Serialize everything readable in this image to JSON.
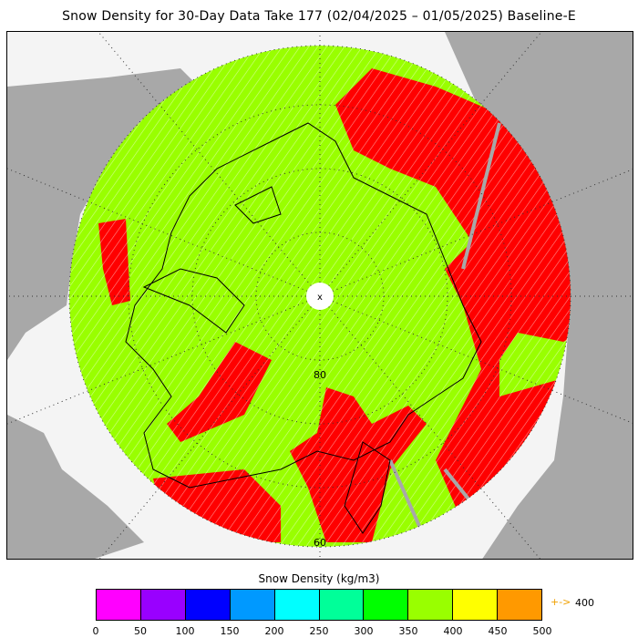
{
  "title": "Snow Density for 30-Day Data Take 177 (02/04/2025 – 01/05/2025) Baseline-E",
  "map": {
    "projection": "north-polar-stereographic",
    "latitude_labels": [
      "80",
      "60"
    ],
    "pole_marker": "x",
    "colors": {
      "ocean": "#f4f4f4",
      "land": "#a8a8a8",
      "density_350_400": "#99ff00",
      "density_over_400": "#ff0000",
      "grid_lines": "#333333",
      "coastline": "#000000"
    }
  },
  "colorbar": {
    "title": "Snow Density (kg/m3)",
    "colors": [
      "#ff00ff",
      "#9900ff",
      "#0000ff",
      "#0099ff",
      "#00ffff",
      "#00ff99",
      "#00ff00",
      "#99ff00",
      "#ffff00",
      "#ff9900"
    ],
    "ticks": [
      "0",
      "50",
      "100",
      "150",
      "200",
      "250",
      "300",
      "350",
      "400",
      "450",
      "500"
    ],
    "overflow_arrow": "+->",
    "overflow_label": "400"
  }
}
